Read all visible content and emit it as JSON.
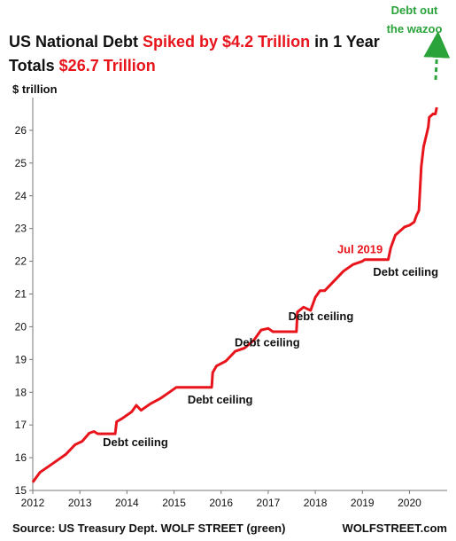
{
  "chart_data": {
    "type": "line",
    "title_parts": [
      "US National Debt ",
      "Spiked by $4.2 Trillion",
      " in 1 Year"
    ],
    "subtitle_parts": [
      "Totals ",
      "$26.7 Trillion"
    ],
    "ylabel": "$ trillion",
    "ylim": [
      15,
      27
    ],
    "xlim": [
      2012,
      2020.8
    ],
    "y_ticks": [
      15,
      16,
      17,
      18,
      19,
      20,
      21,
      22,
      23,
      24,
      25,
      26
    ],
    "x_ticks": [
      2012,
      2013,
      2014,
      2015,
      2016,
      2017,
      2018,
      2019,
      2020
    ],
    "grid": false,
    "series": [
      {
        "color": "#e8141b",
        "x": [
          2012.0,
          2012.15,
          2012.3,
          2012.5,
          2012.7,
          2012.9,
          2013.05,
          2013.2,
          2013.3,
          2013.38,
          2013.75,
          2013.78,
          2013.9,
          2014.1,
          2014.2,
          2014.3,
          2014.5,
          2014.7,
          2014.9,
          2015.05,
          2015.1,
          2015.8,
          2015.82,
          2015.9,
          2016.1,
          2016.3,
          2016.5,
          2016.7,
          2016.85,
          2017.0,
          2017.1,
          2017.6,
          2017.62,
          2017.75,
          2017.9,
          2018.0,
          2018.1,
          2018.2,
          2018.4,
          2018.6,
          2018.8,
          2019.0,
          2019.05,
          2019.1,
          2019.55,
          2019.6,
          2019.7,
          2019.9,
          2020.0,
          2020.1,
          2020.15,
          2020.2,
          2020.25,
          2020.3,
          2020.35,
          2020.4,
          2020.42,
          2020.5,
          2020.55,
          2020.58
        ],
        "y": [
          15.25,
          15.55,
          15.7,
          15.9,
          16.1,
          16.4,
          16.5,
          16.75,
          16.8,
          16.73,
          16.73,
          17.1,
          17.2,
          17.4,
          17.6,
          17.45,
          17.65,
          17.8,
          18.0,
          18.15,
          18.15,
          18.15,
          18.6,
          18.8,
          18.95,
          19.25,
          19.35,
          19.6,
          19.9,
          19.95,
          19.85,
          19.85,
          20.45,
          20.6,
          20.5,
          20.9,
          21.1,
          21.1,
          21.4,
          21.7,
          21.9,
          22.0,
          22.05,
          22.05,
          22.05,
          22.4,
          22.8,
          23.05,
          23.1,
          23.2,
          23.4,
          23.55,
          24.9,
          25.5,
          25.8,
          26.1,
          26.4,
          26.5,
          26.5,
          26.7
        ]
      }
    ],
    "annotations": [
      {
        "text": "Debt ceiling",
        "x": 2014.18,
        "y": 16.35
      },
      {
        "text": "Debt ceiling",
        "x": 2015.98,
        "y": 17.65
      },
      {
        "text": "Debt ceiling",
        "x": 2016.98,
        "y": 19.4
      },
      {
        "text": "Debt ceiling",
        "x": 2018.12,
        "y": 20.2
      },
      {
        "text": "Debt ceiling",
        "x": 2019.92,
        "y": 21.55
      },
      {
        "text": "Jul 2019",
        "x": 2018.95,
        "y": 22.25,
        "color": "#e8141b"
      }
    ],
    "callout": {
      "lines": [
        "Debt out",
        "the wazoo"
      ],
      "color": "#2aa33a"
    },
    "source": "Source: US Treasury Dept. WOLF STREET (green)",
    "watermark": "WOLFSTREET.com"
  }
}
